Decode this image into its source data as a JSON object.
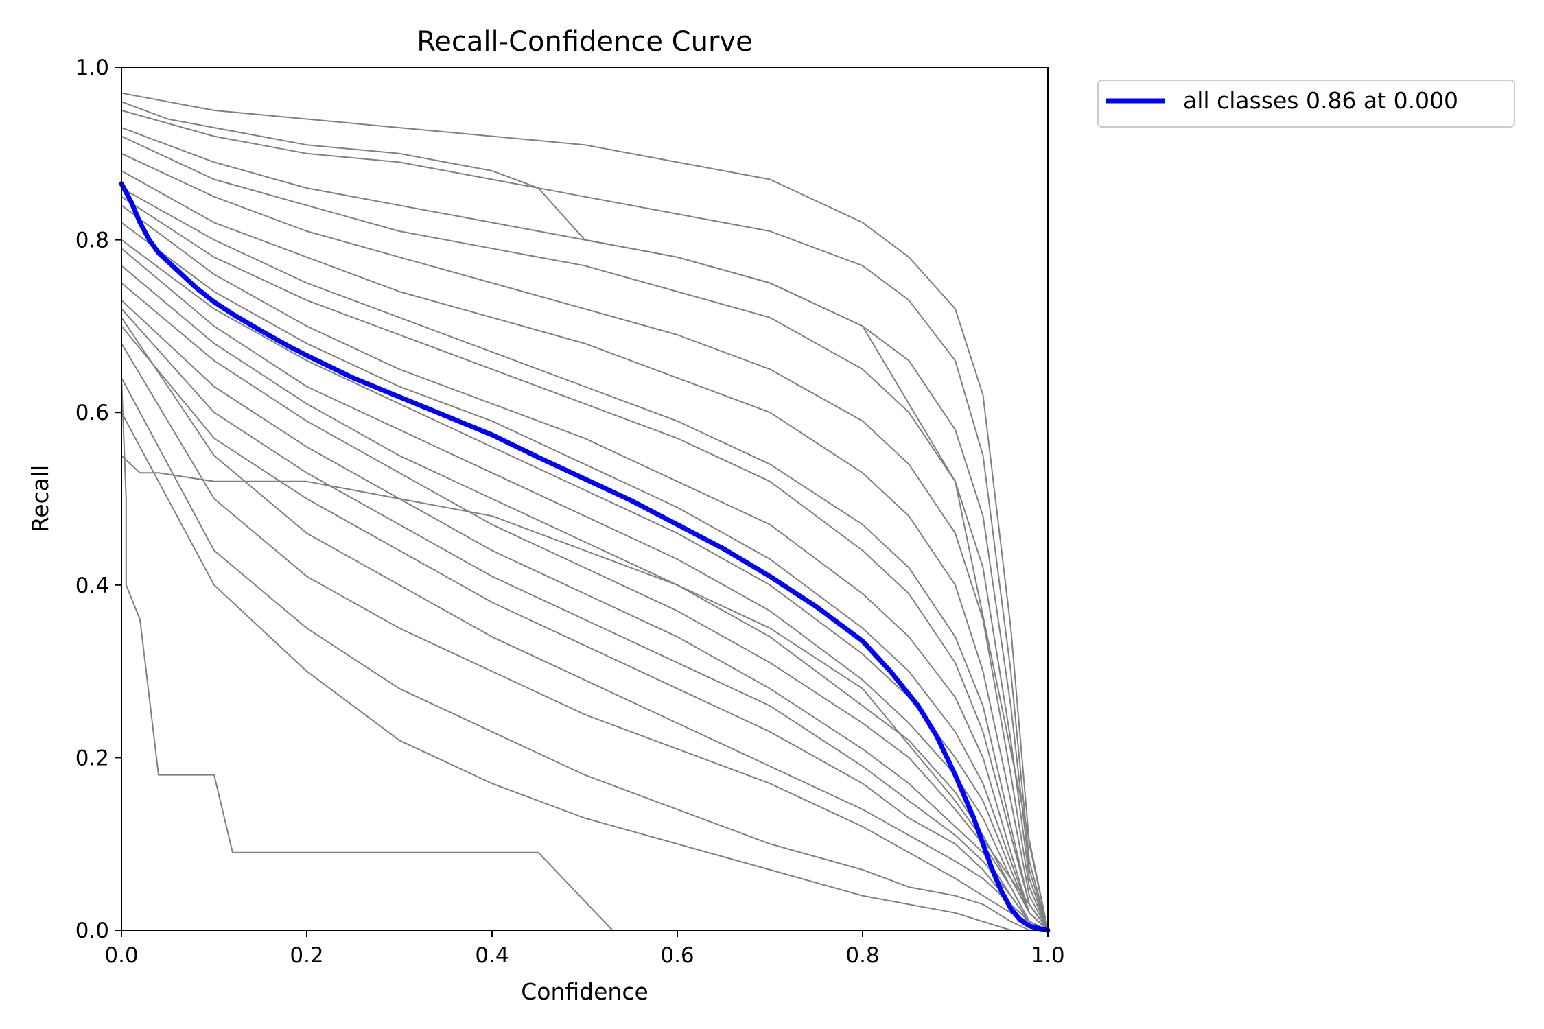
{
  "chart_data": {
    "type": "line",
    "title": "Recall-Confidence Curve",
    "xlabel": "Confidence",
    "ylabel": "Recall",
    "xlim": [
      0.0,
      1.0
    ],
    "ylim": [
      0.0,
      1.0
    ],
    "xticks": [
      "0.0",
      "0.2",
      "0.4",
      "0.6",
      "0.8",
      "1.0"
    ],
    "yticks": [
      "0.0",
      "0.2",
      "0.4",
      "0.6",
      "0.8",
      "1.0"
    ],
    "grid": false,
    "legend_position": "outside-top-right",
    "colors": {
      "class_curves": "#808080",
      "all_classes": "#0000ff"
    },
    "legend": [
      {
        "label": "all classes 0.86 at 0.000",
        "color": "#0000ff"
      }
    ],
    "series": [
      {
        "name": "all classes 0.86 at 0.000",
        "x": [
          0.0,
          0.01,
          0.02,
          0.03,
          0.04,
          0.06,
          0.08,
          0.1,
          0.12,
          0.15,
          0.18,
          0.2,
          0.25,
          0.3,
          0.35,
          0.4,
          0.45,
          0.5,
          0.55,
          0.6,
          0.65,
          0.7,
          0.75,
          0.8,
          0.83,
          0.86,
          0.88,
          0.9,
          0.92,
          0.93,
          0.94,
          0.95,
          0.96,
          0.97,
          0.98,
          0.99,
          1.0
        ],
        "y": [
          0.865,
          0.845,
          0.82,
          0.8,
          0.785,
          0.765,
          0.745,
          0.728,
          0.714,
          0.695,
          0.677,
          0.666,
          0.64,
          0.618,
          0.596,
          0.574,
          0.548,
          0.523,
          0.498,
          0.47,
          0.442,
          0.41,
          0.375,
          0.335,
          0.3,
          0.26,
          0.225,
          0.18,
          0.13,
          0.1,
          0.07,
          0.045,
          0.025,
          0.012,
          0.005,
          0.002,
          0.0
        ]
      }
    ],
    "class_curves": [
      {
        "x": [
          0.0,
          0.1,
          0.2,
          0.3,
          0.4,
          0.5,
          0.6,
          0.7,
          0.8,
          0.85,
          0.9,
          0.93,
          0.96,
          0.98,
          1.0
        ],
        "y": [
          0.97,
          0.95,
          0.94,
          0.93,
          0.92,
          0.91,
          0.89,
          0.87,
          0.82,
          0.78,
          0.72,
          0.62,
          0.35,
          0.1,
          0.0
        ]
      },
      {
        "x": [
          0.0,
          0.1,
          0.2,
          0.3,
          0.4,
          0.5,
          0.6,
          0.7,
          0.8,
          0.85,
          0.9,
          0.93,
          0.96,
          0.98,
          1.0
        ],
        "y": [
          0.95,
          0.92,
          0.9,
          0.89,
          0.87,
          0.85,
          0.83,
          0.81,
          0.77,
          0.73,
          0.66,
          0.55,
          0.3,
          0.08,
          0.0
        ]
      },
      {
        "x": [
          0.0,
          0.1,
          0.2,
          0.3,
          0.4,
          0.5,
          0.6,
          0.7,
          0.8,
          0.85,
          0.9,
          0.93,
          0.96,
          0.98,
          1.0
        ],
        "y": [
          0.93,
          0.89,
          0.86,
          0.84,
          0.82,
          0.8,
          0.78,
          0.75,
          0.7,
          0.66,
          0.58,
          0.48,
          0.26,
          0.07,
          0.0
        ]
      },
      {
        "x": [
          0.0,
          0.1,
          0.2,
          0.3,
          0.4,
          0.5,
          0.6,
          0.7,
          0.8,
          0.85,
          0.9,
          0.93,
          0.96,
          0.98,
          1.0
        ],
        "y": [
          0.92,
          0.87,
          0.84,
          0.81,
          0.79,
          0.77,
          0.74,
          0.71,
          0.65,
          0.6,
          0.52,
          0.42,
          0.22,
          0.06,
          0.0
        ]
      },
      {
        "x": [
          0.0,
          0.1,
          0.2,
          0.3,
          0.4,
          0.5,
          0.6,
          0.7,
          0.8,
          0.85,
          0.9,
          0.93,
          0.96,
          0.98,
          1.0
        ],
        "y": [
          0.9,
          0.85,
          0.81,
          0.78,
          0.75,
          0.72,
          0.69,
          0.65,
          0.59,
          0.54,
          0.46,
          0.36,
          0.18,
          0.05,
          0.0
        ]
      },
      {
        "x": [
          0.0,
          0.1,
          0.2,
          0.3,
          0.4,
          0.5,
          0.6,
          0.7,
          0.8,
          0.85,
          0.9,
          0.93,
          0.96,
          0.98,
          1.0
        ],
        "y": [
          0.88,
          0.82,
          0.78,
          0.74,
          0.71,
          0.68,
          0.64,
          0.6,
          0.53,
          0.48,
          0.4,
          0.3,
          0.15,
          0.04,
          0.0
        ]
      },
      {
        "x": [
          0.0,
          0.1,
          0.2,
          0.3,
          0.4,
          0.5,
          0.6,
          0.7,
          0.8,
          0.85,
          0.9,
          0.93,
          0.96,
          0.98,
          1.0
        ],
        "y": [
          0.86,
          0.8,
          0.75,
          0.71,
          0.67,
          0.63,
          0.59,
          0.54,
          0.47,
          0.42,
          0.34,
          0.26,
          0.12,
          0.03,
          0.0
        ]
      },
      {
        "x": [
          0.0,
          0.1,
          0.2,
          0.3,
          0.4,
          0.5,
          0.6,
          0.7,
          0.8,
          0.85,
          0.9,
          0.93,
          0.96,
          0.98,
          1.0
        ],
        "y": [
          0.85,
          0.78,
          0.73,
          0.69,
          0.65,
          0.61,
          0.57,
          0.52,
          0.44,
          0.39,
          0.31,
          0.23,
          0.11,
          0.03,
          0.0
        ]
      },
      {
        "x": [
          0.0,
          0.1,
          0.2,
          0.3,
          0.4,
          0.5,
          0.6,
          0.7,
          0.8,
          0.85,
          0.9,
          0.93,
          0.96,
          0.98,
          1.0
        ],
        "y": [
          0.84,
          0.76,
          0.7,
          0.65,
          0.61,
          0.57,
          0.52,
          0.47,
          0.39,
          0.34,
          0.27,
          0.2,
          0.09,
          0.02,
          0.0
        ]
      },
      {
        "x": [
          0.0,
          0.1,
          0.2,
          0.3,
          0.4,
          0.5,
          0.6,
          0.7,
          0.8,
          0.85,
          0.9,
          0.93,
          0.96,
          0.98,
          1.0
        ],
        "y": [
          0.82,
          0.74,
          0.68,
          0.63,
          0.59,
          0.54,
          0.49,
          0.43,
          0.35,
          0.3,
          0.23,
          0.17,
          0.08,
          0.02,
          0.0
        ]
      },
      {
        "x": [
          0.0,
          0.1,
          0.2,
          0.3,
          0.4,
          0.5,
          0.6,
          0.7,
          0.8,
          0.85,
          0.9,
          0.93,
          0.96,
          0.98,
          1.0
        ],
        "y": [
          0.8,
          0.72,
          0.66,
          0.61,
          0.56,
          0.51,
          0.46,
          0.4,
          0.32,
          0.27,
          0.2,
          0.15,
          0.07,
          0.02,
          0.0
        ]
      },
      {
        "x": [
          0.0,
          0.1,
          0.2,
          0.3,
          0.4,
          0.5,
          0.6,
          0.7,
          0.8,
          0.85,
          0.9,
          0.93,
          0.96,
          0.98,
          1.0
        ],
        "y": [
          0.79,
          0.7,
          0.63,
          0.58,
          0.53,
          0.48,
          0.43,
          0.37,
          0.29,
          0.24,
          0.18,
          0.13,
          0.06,
          0.02,
          0.0
        ]
      },
      {
        "x": [
          0.0,
          0.1,
          0.2,
          0.3,
          0.4,
          0.5,
          0.6,
          0.7,
          0.8,
          0.85,
          0.9,
          0.93,
          0.96,
          0.98,
          1.0
        ],
        "y": [
          0.77,
          0.68,
          0.61,
          0.55,
          0.5,
          0.45,
          0.4,
          0.34,
          0.26,
          0.22,
          0.16,
          0.11,
          0.05,
          0.01,
          0.0
        ]
      },
      {
        "x": [
          0.0,
          0.1,
          0.2,
          0.3,
          0.4,
          0.5,
          0.6,
          0.7,
          0.8,
          0.85,
          0.9,
          0.93,
          0.96,
          0.98,
          1.0
        ],
        "y": [
          0.75,
          0.66,
          0.59,
          0.53,
          0.47,
          0.42,
          0.37,
          0.31,
          0.24,
          0.2,
          0.14,
          0.1,
          0.05,
          0.01,
          0.0
        ]
      },
      {
        "x": [
          0.0,
          0.1,
          0.2,
          0.3,
          0.4,
          0.5,
          0.6,
          0.7,
          0.8,
          0.85,
          0.9,
          0.93,
          0.96,
          0.98,
          1.0
        ],
        "y": [
          0.73,
          0.63,
          0.56,
          0.5,
          0.44,
          0.39,
          0.34,
          0.28,
          0.21,
          0.17,
          0.12,
          0.09,
          0.04,
          0.01,
          0.0
        ]
      },
      {
        "x": [
          0.0,
          0.1,
          0.2,
          0.3,
          0.4,
          0.5,
          0.6,
          0.7,
          0.8,
          0.85,
          0.9,
          0.93,
          0.96,
          0.98,
          1.0
        ],
        "y": [
          0.72,
          0.6,
          0.53,
          0.47,
          0.41,
          0.36,
          0.31,
          0.26,
          0.19,
          0.15,
          0.11,
          0.08,
          0.04,
          0.01,
          0.0
        ]
      },
      {
        "x": [
          0.0,
          0.1,
          0.2,
          0.3,
          0.4,
          0.5,
          0.6,
          0.7,
          0.8,
          0.85,
          0.9,
          0.93,
          0.96,
          0.98,
          1.0
        ],
        "y": [
          0.7,
          0.57,
          0.5,
          0.44,
          0.38,
          0.33,
          0.28,
          0.23,
          0.17,
          0.13,
          0.1,
          0.07,
          0.03,
          0.01,
          0.0
        ]
      },
      {
        "x": [
          0.0,
          0.1,
          0.2,
          0.3,
          0.4,
          0.5,
          0.6,
          0.7,
          0.8,
          0.85,
          0.9,
          0.93,
          0.96,
          0.98,
          1.0
        ],
        "y": [
          0.71,
          0.55,
          0.46,
          0.4,
          0.34,
          0.29,
          0.24,
          0.19,
          0.14,
          0.11,
          0.08,
          0.06,
          0.03,
          0.01,
          0.0
        ]
      },
      {
        "x": [
          0.0,
          0.1,
          0.2,
          0.3,
          0.4,
          0.5,
          0.6,
          0.7,
          0.8,
          0.85,
          0.9,
          0.93,
          0.96,
          0.98,
          1.0
        ],
        "y": [
          0.68,
          0.5,
          0.41,
          0.35,
          0.3,
          0.25,
          0.21,
          0.17,
          0.12,
          0.09,
          0.06,
          0.04,
          0.02,
          0.01,
          0.0
        ]
      },
      {
        "x": [
          0.0,
          0.1,
          0.2,
          0.3,
          0.4,
          0.5,
          0.6,
          0.7,
          0.8,
          0.85,
          0.9,
          0.93,
          0.96,
          0.98,
          1.0
        ],
        "y": [
          0.64,
          0.44,
          0.35,
          0.28,
          0.23,
          0.18,
          0.14,
          0.1,
          0.07,
          0.05,
          0.04,
          0.03,
          0.01,
          0.0,
          0.0
        ]
      },
      {
        "x": [
          0.0,
          0.1,
          0.2,
          0.3,
          0.4,
          0.5,
          0.6,
          0.7,
          0.8,
          0.85,
          0.9,
          0.93,
          0.96,
          0.98,
          1.0
        ],
        "y": [
          0.6,
          0.4,
          0.3,
          0.22,
          0.17,
          0.13,
          0.1,
          0.07,
          0.04,
          0.03,
          0.02,
          0.01,
          0.0,
          0.0,
          0.0
        ]
      },
      {
        "x": [
          0.0,
          0.05,
          0.15,
          0.2,
          0.3,
          0.4,
          0.45,
          0.5,
          0.6,
          0.7,
          0.8,
          0.9,
          1.0
        ],
        "y": [
          0.96,
          0.94,
          0.92,
          0.91,
          0.9,
          0.88,
          0.86,
          0.8,
          0.78,
          0.75,
          0.7,
          0.52,
          0.0
        ]
      },
      {
        "x": [
          0.0,
          0.02,
          0.04,
          0.1,
          0.2,
          0.3,
          0.4,
          0.5,
          0.6,
          0.7,
          0.8,
          0.9,
          1.0
        ],
        "y": [
          0.55,
          0.53,
          0.53,
          0.52,
          0.52,
          0.5,
          0.48,
          0.44,
          0.4,
          0.35,
          0.28,
          0.15,
          0.0
        ]
      },
      {
        "x": [
          0.0,
          0.005,
          0.005,
          0.02,
          0.03,
          0.04,
          0.05,
          0.1,
          0.12,
          0.2,
          0.3,
          0.45,
          0.53,
          0.6,
          1.0
        ],
        "y": [
          0.64,
          0.5,
          0.4,
          0.36,
          0.27,
          0.18,
          0.18,
          0.18,
          0.09,
          0.09,
          0.09,
          0.09,
          0.0,
          0.0,
          0.0
        ]
      }
    ]
  }
}
